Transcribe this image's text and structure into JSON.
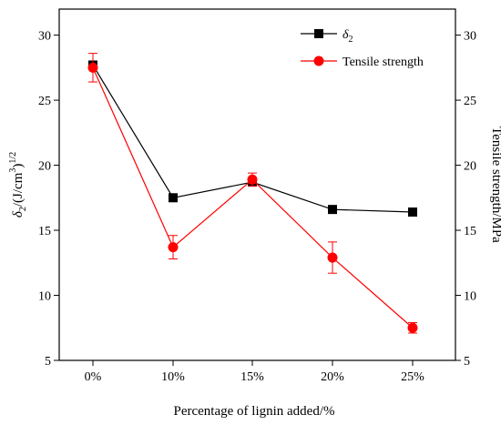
{
  "chart_data": {
    "type": "line",
    "categories": [
      "0%",
      "10%",
      "15%",
      "20%",
      "25%"
    ],
    "xlabel": "Percentage of lignin added/%",
    "ylabel_left": {
      "symbol": "δ",
      "sub": "2",
      "slash": "/",
      "unit": "(J/cm",
      "sup3": "3",
      "close": ")",
      "sup_half": "1/2"
    },
    "ylabel_right": "Tensile strength/MPa",
    "ylim": [
      5,
      32
    ],
    "yticks": [
      5,
      10,
      15,
      20,
      25,
      30
    ],
    "legend_position": "top-right",
    "series": [
      {
        "name": "δ",
        "name_sub": "2",
        "color": "#000000",
        "marker": "square",
        "values": [
          27.7,
          17.5,
          18.7,
          16.6,
          16.4
        ]
      },
      {
        "name": "Tensile strength",
        "color": "#ff0000",
        "marker": "circle",
        "values": [
          27.5,
          13.7,
          18.9,
          12.9,
          7.5
        ],
        "errors": [
          1.1,
          0.9,
          0.5,
          1.2,
          0.4
        ]
      }
    ]
  }
}
